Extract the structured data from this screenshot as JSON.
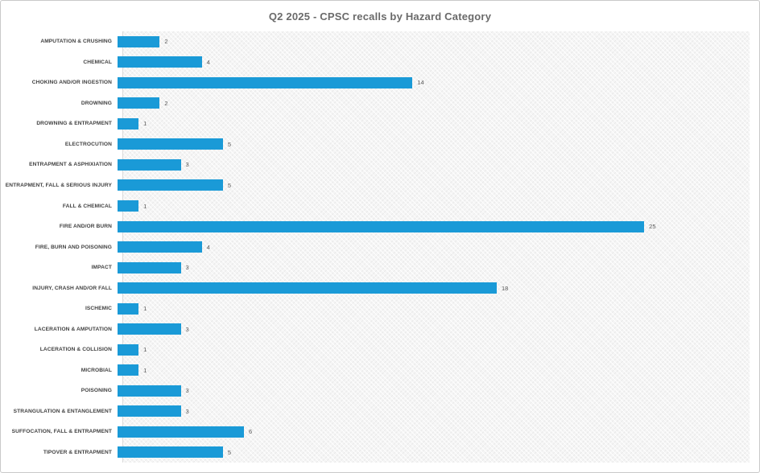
{
  "window": {
    "title": "Q2 2025 - CPSC recalls by Hazard Category"
  },
  "chart_data": {
    "type": "bar",
    "orientation": "horizontal",
    "title": "Q2 2025 - CPSC recalls by Hazard Category",
    "categories": [
      "AMPUTATION & CRUSHING",
      "CHEMICAL",
      "CHOKING AND/OR INGESTION",
      "DROWNING",
      "DROWNING & ENTRAPMENT",
      "ELECTROCUTION",
      "ENTRAPMENT & ASPHIXIATION",
      "ENTRAPMENT, FALL & SERIOUS INJURY",
      "FALL & CHEMICAL",
      "FIRE AND/OR BURN",
      "FIRE, BURN AND POISONING",
      "IMPACT",
      "INJURY, CRASH AND/OR FALL",
      "ISCHEMIC",
      "LACERATION & AMPUTATION",
      "LACERATION & COLLISION",
      "MICROBIAL",
      "POISONING",
      "STRANGULATION & ENTANGLEMENT",
      "SUFFOCATION, FALL & ENTRAPMENT",
      "TIPOVER & ENTRAPMENT"
    ],
    "values": [
      2,
      4,
      14,
      2,
      1,
      5,
      3,
      5,
      1,
      25,
      4,
      3,
      18,
      1,
      3,
      1,
      1,
      3,
      3,
      6,
      5
    ],
    "xlabel": "",
    "ylabel": "",
    "xlim": [
      0,
      30
    ],
    "grid": false,
    "legend": null,
    "data_labels": true,
    "bar_color": "#1a9ad7",
    "title_color": "#6a6a6a",
    "label_color": "#3f3f3f",
    "value_label_color": "#595959",
    "plot_background": "light-gray-diagonal-hatch"
  }
}
